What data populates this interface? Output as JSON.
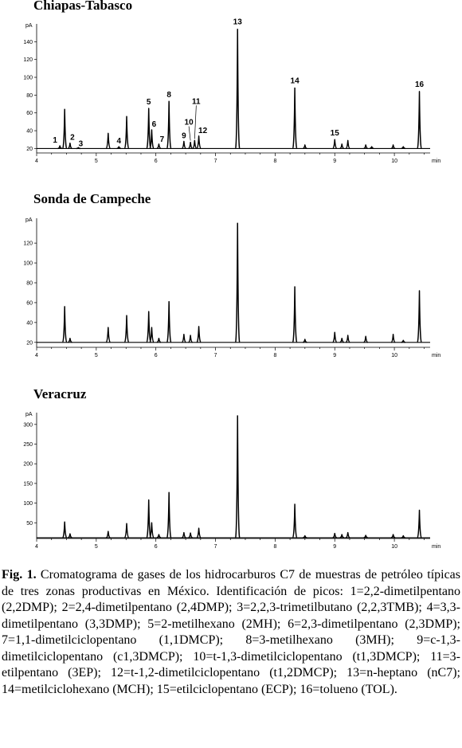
{
  "chart_data": [
    {
      "type": "line",
      "title": "Chiapas-Tabasco",
      "ylabel": "pA",
      "xlabel": "min",
      "xlim": [
        4,
        10.6
      ],
      "ylim": [
        15,
        160
      ],
      "xticks": [
        4,
        5,
        6,
        7,
        8,
        9,
        10
      ],
      "yticks": [
        20,
        40,
        60,
        80,
        100,
        120,
        140
      ],
      "baseline": 20,
      "peaks": [
        {
          "x": 4.39,
          "y": 23,
          "label": "1"
        },
        {
          "x": 4.47,
          "y": 64,
          "label": ""
        },
        {
          "x": 4.56,
          "y": 26,
          "label": "2"
        },
        {
          "x": 4.7,
          "y": 21,
          "label": "3"
        },
        {
          "x": 5.2,
          "y": 37,
          "label": ""
        },
        {
          "x": 5.38,
          "y": 22,
          "label": "4"
        },
        {
          "x": 5.51,
          "y": 56,
          "label": ""
        },
        {
          "x": 5.88,
          "y": 65,
          "label": "5"
        },
        {
          "x": 5.93,
          "y": 41,
          "label": "6"
        },
        {
          "x": 6.05,
          "y": 25,
          "label": "7"
        },
        {
          "x": 6.22,
          "y": 73,
          "label": "8"
        },
        {
          "x": 6.47,
          "y": 28,
          "label": "9"
        },
        {
          "x": 6.58,
          "y": 27,
          "label": "10"
        },
        {
          "x": 6.65,
          "y": 29,
          "label": "11"
        },
        {
          "x": 6.72,
          "y": 34,
          "label": "12"
        },
        {
          "x": 7.37,
          "y": 154,
          "label": "13"
        },
        {
          "x": 8.33,
          "y": 88,
          "label": "14"
        },
        {
          "x": 8.5,
          "y": 24,
          "label": ""
        },
        {
          "x": 9.0,
          "y": 30,
          "label": "15"
        },
        {
          "x": 9.12,
          "y": 25,
          "label": ""
        },
        {
          "x": 9.22,
          "y": 29,
          "label": ""
        },
        {
          "x": 9.52,
          "y": 24,
          "label": ""
        },
        {
          "x": 9.62,
          "y": 22,
          "label": ""
        },
        {
          "x": 9.98,
          "y": 24,
          "label": ""
        },
        {
          "x": 10.15,
          "y": 22,
          "label": ""
        },
        {
          "x": 10.42,
          "y": 84,
          "label": "16"
        }
      ]
    },
    {
      "type": "line",
      "title": "Sonda de Campeche",
      "ylabel": "pA",
      "xlabel": "min",
      "xlim": [
        4,
        10.6
      ],
      "ylim": [
        15,
        145
      ],
      "xticks": [
        4,
        5,
        6,
        7,
        8,
        9,
        10
      ],
      "yticks": [
        20,
        40,
        60,
        80,
        100,
        120
      ],
      "baseline": 20,
      "peaks": [
        {
          "x": 4.47,
          "y": 56,
          "label": ""
        },
        {
          "x": 4.56,
          "y": 24,
          "label": ""
        },
        {
          "x": 5.2,
          "y": 35,
          "label": ""
        },
        {
          "x": 5.51,
          "y": 47,
          "label": ""
        },
        {
          "x": 5.88,
          "y": 51,
          "label": ""
        },
        {
          "x": 5.93,
          "y": 35,
          "label": ""
        },
        {
          "x": 6.05,
          "y": 24,
          "label": ""
        },
        {
          "x": 6.22,
          "y": 61,
          "label": ""
        },
        {
          "x": 6.47,
          "y": 28,
          "label": ""
        },
        {
          "x": 6.58,
          "y": 27,
          "label": ""
        },
        {
          "x": 6.72,
          "y": 36,
          "label": ""
        },
        {
          "x": 7.37,
          "y": 140,
          "label": ""
        },
        {
          "x": 8.33,
          "y": 76,
          "label": ""
        },
        {
          "x": 8.5,
          "y": 23,
          "label": ""
        },
        {
          "x": 9.0,
          "y": 30,
          "label": ""
        },
        {
          "x": 9.12,
          "y": 24,
          "label": ""
        },
        {
          "x": 9.22,
          "y": 27,
          "label": ""
        },
        {
          "x": 9.52,
          "y": 26,
          "label": ""
        },
        {
          "x": 9.98,
          "y": 28,
          "label": ""
        },
        {
          "x": 10.15,
          "y": 22,
          "label": ""
        },
        {
          "x": 10.42,
          "y": 72,
          "label": ""
        }
      ]
    },
    {
      "type": "line",
      "title": "Veracruz",
      "ylabel": "pA",
      "xlabel": "min",
      "xlim": [
        4,
        10.6
      ],
      "ylim": [
        10,
        330
      ],
      "xticks": [
        4,
        5,
        6,
        7,
        8,
        9,
        10
      ],
      "yticks": [
        50,
        100,
        150,
        200,
        250,
        300
      ],
      "baseline": 12,
      "peaks": [
        {
          "x": 4.47,
          "y": 52,
          "label": ""
        },
        {
          "x": 4.56,
          "y": 22,
          "label": ""
        },
        {
          "x": 5.2,
          "y": 28,
          "label": ""
        },
        {
          "x": 5.51,
          "y": 48,
          "label": ""
        },
        {
          "x": 5.88,
          "y": 108,
          "label": ""
        },
        {
          "x": 5.93,
          "y": 50,
          "label": ""
        },
        {
          "x": 6.05,
          "y": 20,
          "label": ""
        },
        {
          "x": 6.22,
          "y": 127,
          "label": ""
        },
        {
          "x": 6.47,
          "y": 25,
          "label": ""
        },
        {
          "x": 6.58,
          "y": 24,
          "label": ""
        },
        {
          "x": 6.72,
          "y": 36,
          "label": ""
        },
        {
          "x": 7.37,
          "y": 322,
          "label": ""
        },
        {
          "x": 8.33,
          "y": 97,
          "label": ""
        },
        {
          "x": 8.5,
          "y": 17,
          "label": ""
        },
        {
          "x": 9.0,
          "y": 23,
          "label": ""
        },
        {
          "x": 9.12,
          "y": 20,
          "label": ""
        },
        {
          "x": 9.22,
          "y": 25,
          "label": ""
        },
        {
          "x": 9.52,
          "y": 18,
          "label": ""
        },
        {
          "x": 9.98,
          "y": 20,
          "label": ""
        },
        {
          "x": 10.15,
          "y": 17,
          "label": ""
        },
        {
          "x": 10.42,
          "y": 82,
          "label": ""
        }
      ]
    }
  ],
  "caption": {
    "fig_label": "Fig. 1.",
    "text": " Cromatograma de gases de los hidrocarburos C7 de muestras de petróleo típicas de tres zonas productivas en México. Identificación de picos: 1=2,2-dimetilpentano (2,2DMP); 2=2,4-dimetilpentano (2,4DMP); 3=2,2,3-trimetilbutano (2,2,3TMB); 4=3,3-dimetilpentano (3,3DMP); 5=2-metilhexano (2MH); 6=2,3-dimetilpentano (2,3DMP); 7=1,1-dimetilciclopentano (1,1DMCP); 8=3-metilhexano (3MH); 9=c-1,3-dimetilciclopentano (c1,3DMCP); 10=t-1,3-dimetilciclopentano (t1,3DMCP); 11=3-etilpentano (3EP); 12=t-1,2-dimetilciclopentano (t1,2DMCP); 13=n-heptano (nC7); 14=metilciclohexano (MCH); 15=etilciclopentano (ECP); 16=tolueno (TOL)."
  }
}
